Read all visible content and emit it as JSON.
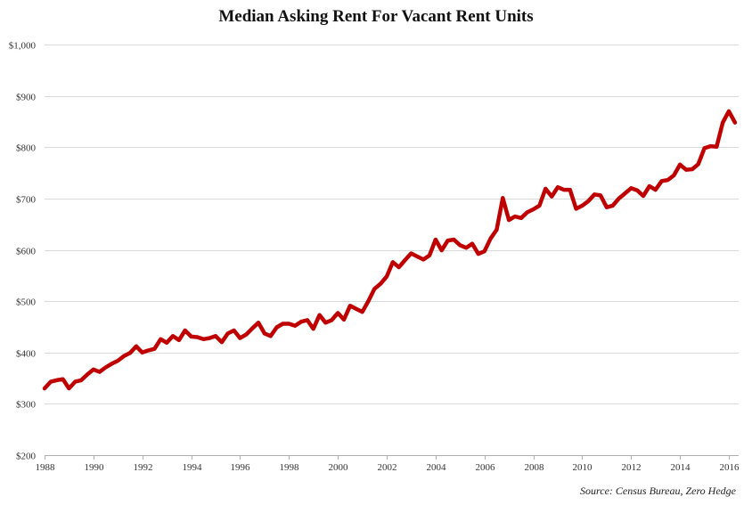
{
  "chart_data": {
    "type": "line",
    "title": "Median Asking Rent For Vacant Rent Units",
    "source": "Source: Census Bureau, Zero Hedge",
    "xlabel": "",
    "ylabel": "",
    "xlim": [
      1988,
      2016.4
    ],
    "ylim": [
      200,
      1000
    ],
    "grid": true,
    "legend": "none",
    "x_ticks": [
      1988,
      1990,
      1992,
      1994,
      1996,
      1998,
      2000,
      2002,
      2004,
      2006,
      2008,
      2010,
      2012,
      2014,
      2016
    ],
    "x_tick_labels": [
      "1988",
      "1990",
      "1992",
      "1994",
      "1996",
      "1998",
      "2000",
      "2002",
      "2004",
      "2006",
      "2008",
      "2010",
      "2012",
      "2014",
      "2016"
    ],
    "y_ticks": [
      200,
      300,
      400,
      500,
      600,
      700,
      800,
      900,
      1000
    ],
    "y_tick_labels": [
      "$200",
      "$300",
      "$400",
      "$500",
      "$600",
      "$700",
      "$800",
      "$900",
      "$1,000"
    ],
    "series": [
      {
        "color": "#c00000",
        "x": [
          1988.0,
          1988.25,
          1988.5,
          1988.75,
          1989.0,
          1989.25,
          1989.5,
          1989.75,
          1990.0,
          1990.25,
          1990.5,
          1990.75,
          1991.0,
          1991.25,
          1991.5,
          1991.75,
          1992.0,
          1992.25,
          1992.5,
          1992.75,
          1993.0,
          1993.25,
          1993.5,
          1993.75,
          1994.0,
          1994.25,
          1994.5,
          1994.75,
          1995.0,
          1995.25,
          1995.5,
          1995.75,
          1996.0,
          1996.25,
          1996.5,
          1996.75,
          1997.0,
          1997.25,
          1997.5,
          1997.75,
          1998.0,
          1998.25,
          1998.5,
          1998.75,
          1999.0,
          1999.25,
          1999.5,
          1999.75,
          2000.0,
          2000.25,
          2000.5,
          2000.75,
          2001.0,
          2001.25,
          2001.5,
          2001.75,
          2002.0,
          2002.25,
          2002.5,
          2002.75,
          2003.0,
          2003.25,
          2003.5,
          2003.75,
          2004.0,
          2004.25,
          2004.5,
          2004.75,
          2005.0,
          2005.25,
          2005.5,
          2005.75,
          2006.0,
          2006.25,
          2006.5,
          2006.75,
          2007.0,
          2007.25,
          2007.5,
          2007.75,
          2008.0,
          2008.25,
          2008.5,
          2008.75,
          2009.0,
          2009.25,
          2009.5,
          2009.75,
          2010.0,
          2010.25,
          2010.5,
          2010.75,
          2011.0,
          2011.25,
          2011.5,
          2011.75,
          2012.0,
          2012.25,
          2012.5,
          2012.75,
          2013.0,
          2013.25,
          2013.5,
          2013.75,
          2014.0,
          2014.25,
          2014.5,
          2014.75,
          2015.0,
          2015.25,
          2015.5,
          2015.75,
          2016.0,
          2016.25
        ],
        "values": [
          330,
          343,
          346,
          348,
          330,
          343,
          346,
          357,
          367,
          362,
          371,
          378,
          384,
          393,
          399,
          412,
          400,
          404,
          407,
          426,
          419,
          432,
          424,
          443,
          431,
          430,
          426,
          428,
          432,
          420,
          437,
          443,
          428,
          435,
          447,
          458,
          437,
          432,
          449,
          456,
          456,
          452,
          460,
          463,
          446,
          473,
          458,
          463,
          477,
          464,
          491,
          485,
          479,
          500,
          524,
          534,
          548,
          576,
          566,
          580,
          593,
          587,
          581,
          589,
          620,
          599,
          618,
          620,
          609,
          604,
          612,
          592,
          597,
          622,
          639,
          701,
          658,
          665,
          662,
          673,
          679,
          686,
          719,
          704,
          722,
          717,
          717,
          680,
          686,
          695,
          708,
          706,
          683,
          686,
          700,
          710,
          720,
          716,
          705,
          724,
          717,
          734,
          736,
          745,
          766,
          756,
          757,
          767,
          798,
          802,
          801,
          848,
          870,
          848
        ]
      }
    ]
  }
}
